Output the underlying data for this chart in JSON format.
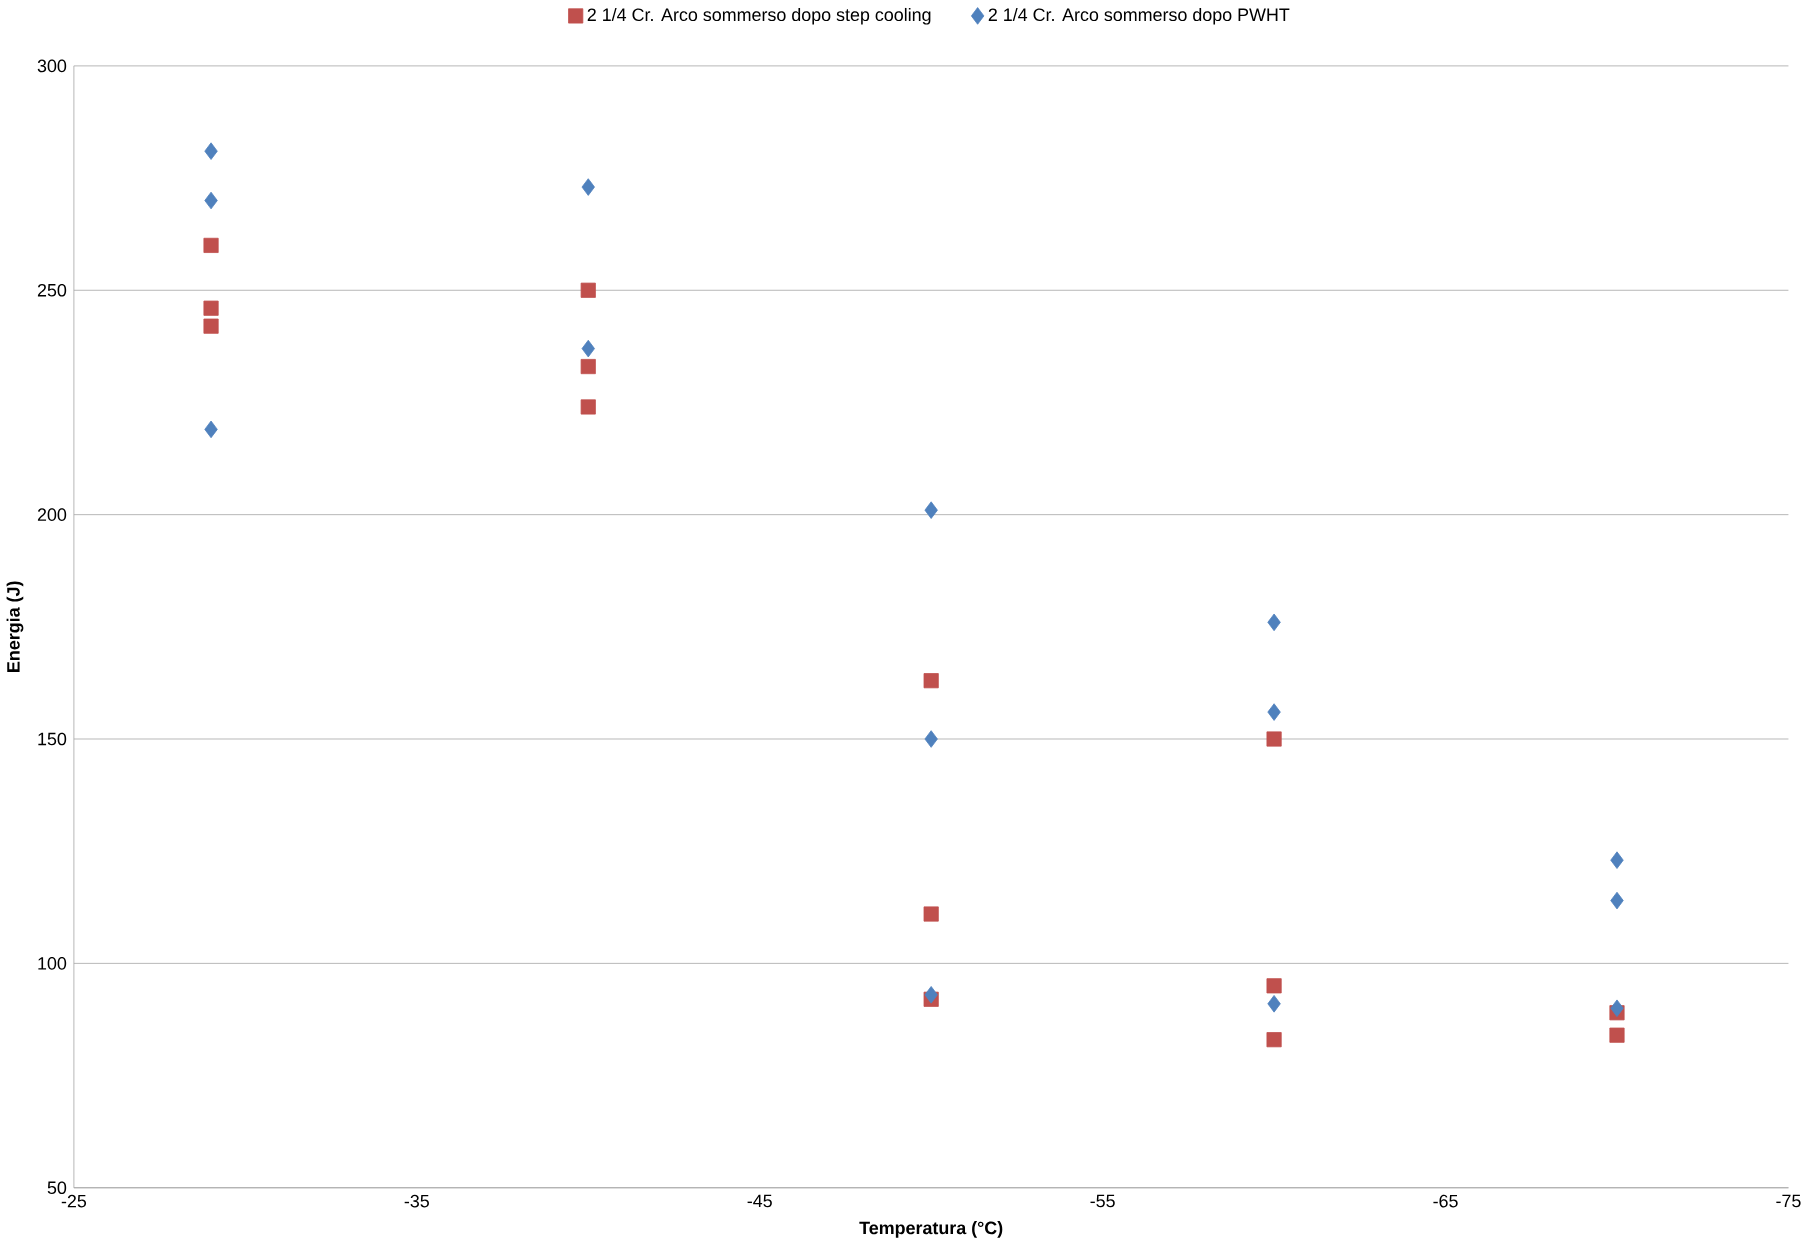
{
  "chart_data": {
    "type": "scatter",
    "xlabel": "Temperatura (°C)",
    "ylabel": "Energia (J)",
    "xlim": [
      -25,
      -75
    ],
    "xticks": [
      -25,
      -35,
      -45,
      -55,
      -65,
      -75
    ],
    "ylim": [
      50,
      300
    ],
    "yticks": [
      50,
      100,
      150,
      200,
      250,
      300
    ],
    "grid": "y",
    "legend": "top",
    "series": [
      {
        "name": "2 1/4 Cr. Arco sommerso dopo step cooling",
        "color": "#c0504d",
        "marker": "square",
        "x": [
          -29,
          -29,
          -29,
          -40,
          -40,
          -40,
          -50,
          -50,
          -50,
          -60,
          -60,
          -60,
          -70,
          -70
        ],
        "values": [
          260,
          246,
          242,
          250,
          233,
          224,
          163,
          111,
          92,
          150,
          95,
          83,
          89,
          84
        ]
      },
      {
        "name": "2 1/4 Cr. Arco sommerso dopo PWHT",
        "color": "#4f81bd",
        "marker": "diamond",
        "x": [
          -29,
          -29,
          -29,
          -40,
          -40,
          -50,
          -50,
          -50,
          -60,
          -60,
          -60,
          -70,
          -70,
          -70
        ],
        "values": [
          281,
          270,
          219,
          273,
          237,
          201,
          150,
          93,
          176,
          156,
          91,
          123,
          114,
          90
        ]
      }
    ]
  }
}
